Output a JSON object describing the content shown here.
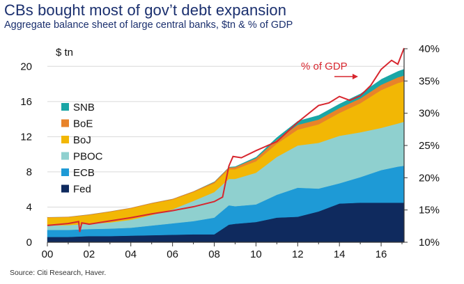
{
  "title": "CBs bought most of gov’t debt expansion",
  "subtitle": "Aggregate balance sheet of large central banks, $tn & % of GDP",
  "source": "Source: Citi Research, Haver.",
  "chart_data": {
    "type": "area",
    "left_axis_label": "$ tn",
    "left_ylim": [
      0,
      22
    ],
    "left_ticks": [
      0,
      4,
      8,
      12,
      16,
      20
    ],
    "right_ylim": [
      10,
      40
    ],
    "right_ticks": [
      "10%",
      "15%",
      "20%",
      "25%",
      "30%",
      "35%",
      "40%"
    ],
    "x_ticks": [
      "00",
      "02",
      "04",
      "06",
      "08",
      "10",
      "12",
      "14",
      "16"
    ],
    "x_range": [
      2000,
      2017.1
    ],
    "x": [
      2000,
      2001,
      2002,
      2003,
      2004,
      2005,
      2006,
      2007,
      2008,
      2008.7,
      2009,
      2010,
      2011,
      2012,
      2013,
      2014,
      2015,
      2016,
      2016.8,
      2017.1
    ],
    "series": [
      {
        "name": "Fed",
        "color": "#0f2a5e",
        "values": [
          0.6,
          0.6,
          0.7,
          0.7,
          0.75,
          0.8,
          0.85,
          0.9,
          0.9,
          2.0,
          2.1,
          2.3,
          2.8,
          2.9,
          3.5,
          4.4,
          4.5,
          4.5,
          4.5,
          4.5
        ]
      },
      {
        "name": "ECB",
        "color": "#1e9ad6",
        "values": [
          0.8,
          0.8,
          0.8,
          0.85,
          0.9,
          1.1,
          1.3,
          1.5,
          1.9,
          2.2,
          2.0,
          2.0,
          2.6,
          3.3,
          2.6,
          2.3,
          2.9,
          3.7,
          4.1,
          4.2
        ]
      },
      {
        "name": "PBOC",
        "color": "#8fd0cf",
        "values": [
          0.5,
          0.55,
          0.6,
          0.7,
          0.9,
          1.2,
          1.6,
          2.3,
          2.9,
          3.0,
          3.1,
          3.6,
          4.3,
          4.8,
          5.2,
          5.4,
          5.1,
          4.8,
          4.9,
          5.0
        ]
      },
      {
        "name": "BoJ",
        "color": "#f2b705",
        "values": [
          0.9,
          0.9,
          1.0,
          1.2,
          1.3,
          1.3,
          1.1,
          1.0,
          1.0,
          1.1,
          1.1,
          1.3,
          1.5,
          1.8,
          2.1,
          2.6,
          3.3,
          4.3,
          4.6,
          4.6
        ]
      },
      {
        "name": "BoE",
        "color": "#e8832a",
        "values": [
          0.06,
          0.06,
          0.07,
          0.07,
          0.08,
          0.08,
          0.09,
          0.1,
          0.15,
          0.2,
          0.25,
          0.35,
          0.45,
          0.55,
          0.55,
          0.55,
          0.55,
          0.6,
          0.65,
          0.65
        ]
      },
      {
        "name": "SNB",
        "color": "#1aa6a6",
        "values": [
          0.05,
          0.05,
          0.05,
          0.05,
          0.05,
          0.05,
          0.05,
          0.05,
          0.1,
          0.12,
          0.12,
          0.2,
          0.35,
          0.5,
          0.55,
          0.55,
          0.6,
          0.7,
          0.75,
          0.8
        ]
      }
    ],
    "gdp_share": {
      "name": "% of GDP",
      "color": "#d7262e",
      "x": [
        2000,
        2001,
        2001.5,
        2001.55,
        2001.65,
        2002,
        2003,
        2004,
        2005,
        2006,
        2007,
        2008,
        2008.4,
        2008.7,
        2008.9,
        2009.3,
        2010,
        2011,
        2012,
        2013,
        2013.5,
        2014,
        2014.5,
        2015,
        2015.5,
        2016,
        2016.5,
        2016.8,
        2017.1
      ],
      "values": [
        12.6,
        12.9,
        13.2,
        11.6,
        13.0,
        12.8,
        13.3,
        13.8,
        14.4,
        14.9,
        15.5,
        16.3,
        17.0,
        21.8,
        23.3,
        23.1,
        24.2,
        25.6,
        28.6,
        31.2,
        31.6,
        32.6,
        32.0,
        32.7,
        34.3,
        36.8,
        38.2,
        37.6,
        40.1
      ]
    },
    "legend": [
      "SNB",
      "BoE",
      "BoJ",
      "PBOC",
      "ECB",
      "Fed"
    ],
    "legend_position": "left-middle",
    "annotation": "% of GDP"
  }
}
